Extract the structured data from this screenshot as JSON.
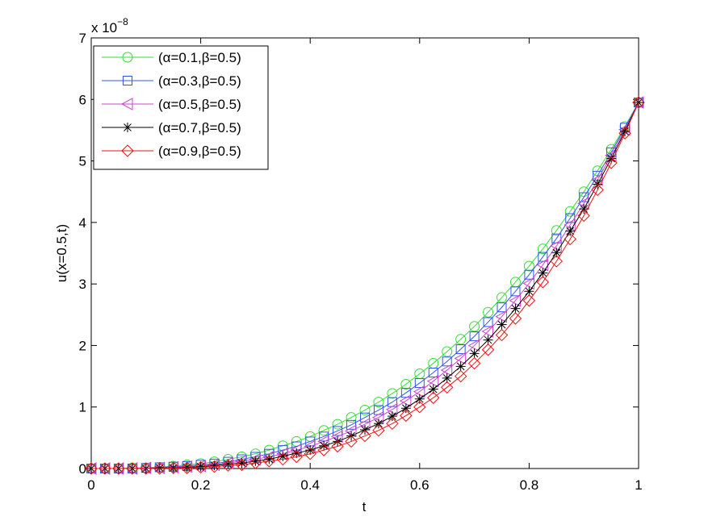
{
  "chart_data": {
    "type": "line",
    "x_label": "t",
    "y_label": "u(x=0.5,t)",
    "y_scale_label": "x 10",
    "y_scale_exponent": "−8",
    "x": [
      0,
      0.025,
      0.05,
      0.075,
      0.1,
      0.125,
      0.15,
      0.175,
      0.2,
      0.225,
      0.25,
      0.275,
      0.3,
      0.325,
      0.35,
      0.375,
      0.4,
      0.425,
      0.45,
      0.475,
      0.5,
      0.525,
      0.55,
      0.575,
      0.6,
      0.625,
      0.65,
      0.675,
      0.7,
      0.725,
      0.75,
      0.775,
      0.8,
      0.825,
      0.85,
      0.875,
      0.9,
      0.925,
      0.95,
      0.975,
      1
    ],
    "series": [
      {
        "name": "(α=0.1,β=0.5)",
        "color": "#33dd33",
        "marker": "circle",
        "values": [
          0,
          0,
          0,
          0.01,
          0.01,
          0.02,
          0.04,
          0.06,
          0.08,
          0.11,
          0.15,
          0.19,
          0.24,
          0.3,
          0.37,
          0.44,
          0.52,
          0.62,
          0.72,
          0.83,
          0.95,
          1.08,
          1.22,
          1.37,
          1.54,
          1.71,
          1.9,
          2.1,
          2.31,
          2.54,
          2.78,
          3.03,
          3.29,
          3.57,
          3.87,
          4.18,
          4.5,
          4.84,
          5.19,
          5.56,
          5.95
        ]
      },
      {
        "name": "(α=0.3,β=0.5)",
        "color": "#3355ee",
        "marker": "square",
        "values": [
          0,
          0,
          0,
          0,
          0.01,
          0.02,
          0.03,
          0.04,
          0.06,
          0.08,
          0.11,
          0.15,
          0.19,
          0.24,
          0.3,
          0.36,
          0.44,
          0.52,
          0.61,
          0.71,
          0.83,
          0.95,
          1.08,
          1.23,
          1.39,
          1.56,
          1.74,
          1.94,
          2.15,
          2.38,
          2.62,
          2.88,
          3.15,
          3.44,
          3.74,
          4.07,
          4.41,
          4.76,
          5.14,
          5.54,
          5.95
        ]
      },
      {
        "name": "(α=0.5,β=0.5)",
        "color": "#cc44cc",
        "marker": "triangle-left",
        "values": [
          0,
          0,
          0,
          0,
          0.01,
          0.01,
          0.02,
          0.03,
          0.04,
          0.06,
          0.09,
          0.12,
          0.15,
          0.19,
          0.24,
          0.3,
          0.36,
          0.44,
          0.52,
          0.61,
          0.72,
          0.83,
          0.96,
          1.1,
          1.25,
          1.42,
          1.6,
          1.79,
          2.0,
          2.23,
          2.47,
          2.73,
          3.01,
          3.31,
          3.62,
          3.96,
          4.31,
          4.69,
          5.09,
          5.51,
          5.95
        ]
      },
      {
        "name": "(α=0.7,β=0.5)",
        "color": "#000000",
        "marker": "asterisk",
        "values": [
          0,
          0,
          0,
          0,
          0,
          0.01,
          0.01,
          0.02,
          0.03,
          0.05,
          0.07,
          0.09,
          0.12,
          0.15,
          0.2,
          0.25,
          0.3,
          0.37,
          0.44,
          0.53,
          0.63,
          0.73,
          0.85,
          0.98,
          1.13,
          1.29,
          1.47,
          1.66,
          1.87,
          2.09,
          2.34,
          2.6,
          2.88,
          3.18,
          3.51,
          3.86,
          4.22,
          4.62,
          5.04,
          5.48,
          5.95
        ]
      },
      {
        "name": "(α=0.9,β=0.5)",
        "color": "#ee1111",
        "marker": "diamond",
        "values": [
          0,
          0,
          0,
          0,
          0,
          0,
          0.01,
          0.01,
          0.02,
          0.03,
          0.05,
          0.06,
          0.09,
          0.12,
          0.15,
          0.19,
          0.24,
          0.3,
          0.36,
          0.44,
          0.53,
          0.62,
          0.73,
          0.86,
          1.0,
          1.15,
          1.32,
          1.5,
          1.71,
          1.93,
          2.17,
          2.44,
          2.73,
          3.03,
          3.37,
          3.73,
          4.11,
          4.53,
          4.97,
          5.45,
          5.95
        ]
      }
    ],
    "xlim": [
      0,
      1
    ],
    "xticks": [
      0,
      0.2,
      0.4,
      0.6,
      0.8,
      1
    ],
    "ylim": [
      0,
      7
    ],
    "yticks": [
      0,
      1,
      2,
      3,
      4,
      5,
      6,
      7
    ],
    "grid": false,
    "legend": "upper left"
  }
}
